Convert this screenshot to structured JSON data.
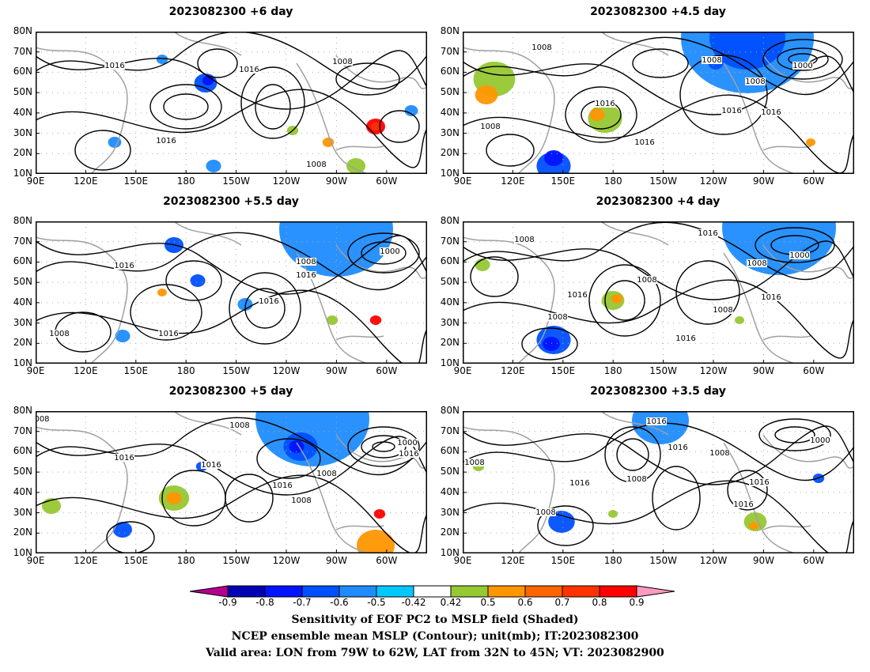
{
  "panels": [
    {
      "title": "2023082300 +6 day"
    },
    {
      "title": "2023082300 +4.5 day"
    },
    {
      "title": "2023082300 +5.5 day"
    },
    {
      "title": "2023082300 +4 day"
    },
    {
      "title": "2023082300 +5 day"
    },
    {
      "title": "2023082300 +3.5 day"
    }
  ],
  "axes": {
    "lat_ticks": [
      "80N",
      "70N",
      "60N",
      "50N",
      "40N",
      "30N",
      "20N",
      "10N"
    ],
    "lon_ticks": [
      "90E",
      "120E",
      "150E",
      "180",
      "150W",
      "120W",
      "90W",
      "60W"
    ]
  },
  "contour_labels": {
    "p0": [
      "1016",
      "1016",
      "1008",
      "1016",
      "1008"
    ],
    "p1": [
      "1008",
      "1008",
      "1016",
      "1000",
      "1008",
      "1016",
      "1008",
      "1016",
      "1016"
    ],
    "p2": [
      "1016",
      "1008",
      "1016",
      "1016",
      "1016",
      "1008",
      "1000"
    ],
    "p3": [
      "1008",
      "1016",
      "1000",
      "1008",
      "1008",
      "1016",
      "1008",
      "1016",
      "1008",
      "1016"
    ],
    "p4": [
      "008",
      "1008",
      "1016",
      "1016",
      "1016",
      "1000",
      "1008",
      "1016",
      "1008"
    ],
    "p5": [
      "1016",
      "1016",
      "1008",
      "1000",
      "1008",
      "1008",
      "1016",
      "1016",
      "1008",
      "1016"
    ]
  },
  "colorbar": {
    "colors": [
      "#b4008c",
      "#0000b4",
      "#0014ff",
      "#0050ff",
      "#1e8cff",
      "#00c8ff",
      "#ffffff",
      "#96c832",
      "#ff9600",
      "#ff6400",
      "#ff3200",
      "#ff0000",
      "#ff9bbe"
    ],
    "labels": [
      "-0.9",
      "-0.8",
      "-0.7",
      "-0.6",
      "-0.5",
      "-0.42",
      "0.42",
      "0.5",
      "0.6",
      "0.7",
      "0.8",
      "0.9"
    ]
  },
  "caption": {
    "line1": "Sensitivity of EOF PC2 to MSLP field (Shaded)",
    "line2": "NCEP ensemble mean MSLP (Contour); unit(mb); IT:2023082300",
    "line3": "Valid area: LON from 79W to 62W, LAT from 32N to 45N; VT: 2023082900"
  }
}
